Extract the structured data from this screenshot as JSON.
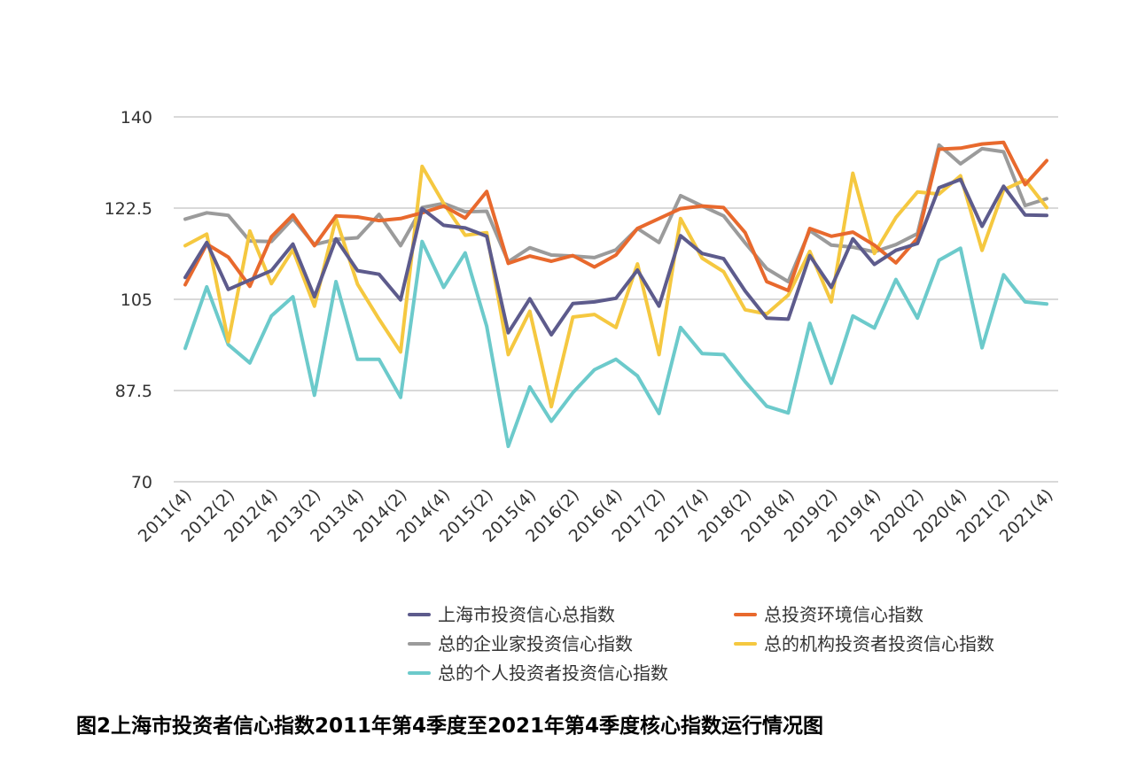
{
  "chart_data": {
    "type": "line",
    "title": "",
    "xlabel": "",
    "ylabel": "",
    "ylim": [
      70,
      140
    ],
    "yticks": [
      70,
      87.5,
      105,
      122.5,
      140
    ],
    "grid": "horizontal",
    "legend_position": "bottom",
    "x_tick_labels": [
      "2011(4)",
      "2012(2)",
      "2012(4)",
      "2013(2)",
      "2013(4)",
      "2014(2)",
      "2014(4)",
      "2015(2)",
      "2015(4)",
      "2016(2)",
      "2016(4)",
      "2017(2)",
      "2017(4)",
      "2018(2)",
      "2018(4)",
      "2019(2)",
      "2019(4)",
      "2020(2)",
      "2020(4)",
      "2021(2)",
      "2021(4)"
    ],
    "categories": [
      "2011(4)",
      "2012(1)",
      "2012(2)",
      "2012(3)",
      "2012(4)",
      "2013(1)",
      "2013(2)",
      "2013(3)",
      "2013(4)",
      "2014(1)",
      "2014(2)",
      "2014(3)",
      "2014(4)",
      "2015(1)",
      "2015(2)",
      "2015(3)",
      "2015(4)",
      "2016(1)",
      "2016(2)",
      "2016(3)",
      "2016(4)",
      "2017(1)",
      "2017(2)",
      "2017(3)",
      "2017(4)",
      "2018(1)",
      "2018(2)",
      "2018(3)",
      "2018(4)",
      "2019(1)",
      "2019(2)",
      "2019(3)",
      "2019(4)",
      "2020(1)",
      "2020(2)",
      "2020(3)",
      "2020(4)",
      "2021(1)",
      "2021(2)",
      "2021(3)",
      "2021(4)"
    ],
    "series": [
      {
        "name": "上海市投资信心总指数",
        "color": "#5d5b8c",
        "values": [
          109.2,
          115.9,
          106.9,
          108.7,
          110.5,
          115.6,
          105.5,
          116.6,
          110.5,
          109.8,
          104.9,
          122.4,
          119.2,
          118.7,
          117.1,
          98.6,
          105.1,
          98.2,
          104.2,
          104.5,
          105.2,
          110.6,
          103.7,
          117.2,
          113.8,
          112.8,
          106.6,
          101.4,
          101.2,
          113.4,
          107.3,
          116.6,
          111.7,
          114.4,
          115.7,
          126.4,
          128.0,
          119.0,
          126.7,
          121.2,
          121.1
        ]
      },
      {
        "name": "总投资环境信心指数",
        "color": "#e8692d",
        "values": [
          107.8,
          115.6,
          113.1,
          107.5,
          117.0,
          121.2,
          115.3,
          121.0,
          120.8,
          120.1,
          120.5,
          121.6,
          122.9,
          120.6,
          125.7,
          111.9,
          113.3,
          112.3,
          113.4,
          111.2,
          113.5,
          118.6,
          120.5,
          122.4,
          122.9,
          122.6,
          117.8,
          108.4,
          106.7,
          118.6,
          117.1,
          117.9,
          115.4,
          112.0,
          116.7,
          133.8,
          134.0,
          134.8,
          135.1,
          127.0,
          131.6
        ]
      },
      {
        "name": "总的企业家投资信心指数",
        "color": "#9b9b9b",
        "values": [
          120.4,
          121.6,
          121.1,
          116.2,
          116.1,
          120.5,
          115.5,
          116.5,
          116.8,
          121.3,
          115.3,
          122.6,
          123.4,
          121.8,
          121.9,
          112.2,
          114.9,
          113.5,
          113.3,
          113.0,
          114.5,
          118.6,
          115.9,
          124.9,
          122.9,
          121.0,
          115.8,
          110.9,
          108.4,
          118.2,
          115.4,
          115.0,
          114.1,
          115.5,
          117.6,
          134.6,
          131.0,
          133.9,
          133.3,
          123.0,
          124.3
        ]
      },
      {
        "name": "总的机构投资者投资信心指数",
        "color": "#f5c840",
        "values": [
          115.3,
          117.5,
          96.9,
          118.1,
          108.0,
          114.5,
          103.7,
          120.5,
          107.9,
          101.2,
          94.9,
          130.5,
          123.4,
          117.3,
          117.8,
          94.4,
          102.7,
          84.4,
          101.6,
          102.1,
          99.6,
          111.8,
          94.4,
          120.5,
          112.9,
          110.3,
          103.0,
          102.2,
          105.8,
          114.2,
          104.5,
          129.2,
          113.8,
          120.7,
          125.6,
          125.2,
          128.7,
          114.4,
          126.0,
          127.9,
          122.6
        ]
      },
      {
        "name": "总的个人投资者投资信心指数",
        "color": "#6ccacb",
        "values": [
          95.6,
          107.4,
          96.3,
          92.8,
          101.8,
          105.5,
          86.6,
          108.4,
          93.5,
          93.5,
          86.2,
          116.1,
          107.3,
          113.9,
          99.8,
          76.8,
          88.2,
          81.6,
          87.1,
          91.5,
          93.5,
          90.3,
          83.1,
          99.6,
          94.6,
          94.4,
          89.2,
          84.5,
          83.2,
          100.4,
          88.9,
          101.8,
          99.5,
          108.8,
          101.4,
          112.5,
          114.8,
          95.7,
          109.7,
          104.5,
          104.1
        ]
      }
    ]
  },
  "caption": "图2上海市投资者信心指数2011年第4季度至2021年第4季度核心指数运行情况图"
}
